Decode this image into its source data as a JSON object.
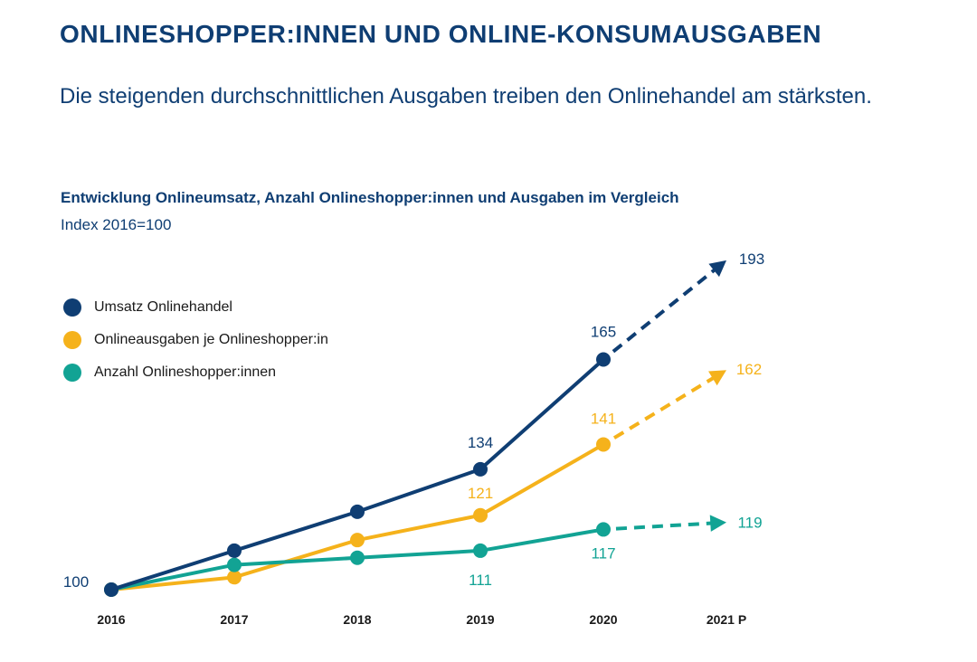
{
  "page": {
    "title": "ONLINESHOPPER:INNEN UND ONLINE-KONSUMAUSGABEN",
    "subtitle": "Die steigenden durchschnittlichen Ausgaben treiben den Onlinehandel am stärksten."
  },
  "chart_data": {
    "type": "line",
    "title": "Entwicklung Onlineumsatz, Anzahl Onlineshopper:innen und Ausgaben im Vergleich",
    "subtitle": "Index 2016=100",
    "xlabel": "",
    "ylabel": "",
    "categories": [
      "2016",
      "2017",
      "2018",
      "2019",
      "2020",
      "2021 P"
    ],
    "ylim": [
      100,
      195
    ],
    "grid": false,
    "legend_position": "left",
    "base_label": "100",
    "forecast_from_index": 4,
    "series": [
      {
        "name": "Umsatz Onlinehandel",
        "color": "#0f3e73",
        "values": [
          100,
          111,
          122,
          134,
          165,
          193
        ],
        "labels": {
          "3": "134",
          "4": "165",
          "5": "193"
        }
      },
      {
        "name": "Onlineausgaben je Onlineshopper:in",
        "color": "#f5b21b",
        "values": [
          100,
          103.5,
          114,
          121,
          141,
          162
        ],
        "labels": {
          "3": "121",
          "4": "141",
          "5": "162"
        }
      },
      {
        "name": "Anzahl Onlineshopper:innen",
        "color": "#12a394",
        "values": [
          100,
          107,
          109,
          111,
          117,
          119
        ],
        "labels": {
          "3": "111",
          "4": "117",
          "5": "119"
        }
      }
    ]
  }
}
